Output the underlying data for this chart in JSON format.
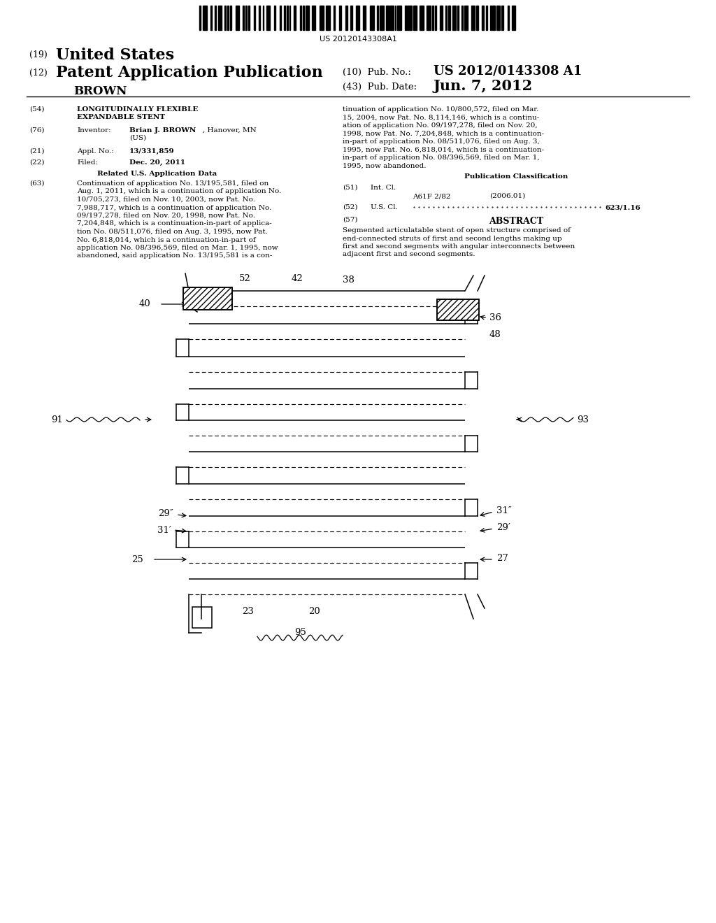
{
  "background_color": "#ffffff",
  "page_width": 10.24,
  "page_height": 13.2,
  "barcode_text": "US 20120143308A1",
  "field63_lines": [
    "Continuation of application No. 13/195,581, filed on",
    "Aug. 1, 2011, which is a continuation of application No.",
    "10/705,273, filed on Nov. 10, 2003, now Pat. No.",
    "7,988,717, which is a continuation of application No.",
    "09/197,278, filed on Nov. 20, 1998, now Pat. No.",
    "7,204,848, which is a continuation-in-part of applica-",
    "tion No. 08/511,076, filed on Aug. 3, 1995, now Pat.",
    "No. 6,818,014, which is a continuation-in-part of",
    "application No. 08/396,569, filed on Mar. 1, 1995, now",
    "abandoned, said application No. 13/195,581 is a con-"
  ],
  "right_col_lines": [
    "tinuation of application No. 10/800,572, filed on Mar.",
    "15, 2004, now Pat. No. 8,114,146, which is a continu-",
    "ation of application No. 09/197,278, filed on Nov. 20,",
    "1998, now Pat. No. 7,204,848, which is a continuation-",
    "in-part of application No. 08/511,076, filed on Aug. 3,",
    "1995, now Pat. No. 6,818,014, which is a continuation-",
    "in-part of application No. 08/396,569, filed on Mar. 1,",
    "1995, now abandoned."
  ],
  "abstract_lines": [
    "Segmented articulatable stent of open structure comprised of",
    "end-connected struts of first and second lengths making up",
    "first and second segments with angular interconnects between",
    "adjacent first and second segments."
  ]
}
